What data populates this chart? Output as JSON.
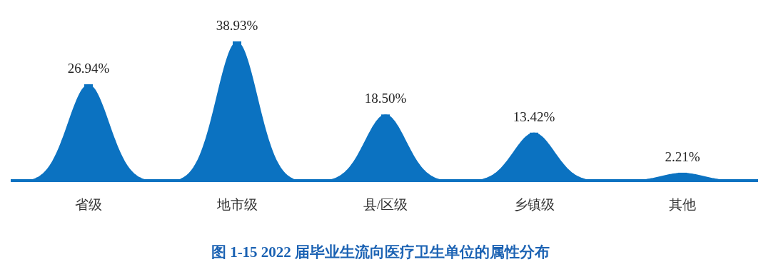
{
  "chart_data": {
    "type": "bar",
    "title": "图 1-15  2022 届毕业生流向医疗卫生单位的属性分布",
    "categories": [
      "省级",
      "地市级",
      "县/区级",
      "乡镇级",
      "其他"
    ],
    "values": [
      26.94,
      38.93,
      18.5,
      13.42,
      2.21
    ],
    "value_labels": [
      "26.94%",
      "38.93%",
      "18.50%",
      "13.42%",
      "2.21%"
    ],
    "color": "#0b72c1"
  }
}
